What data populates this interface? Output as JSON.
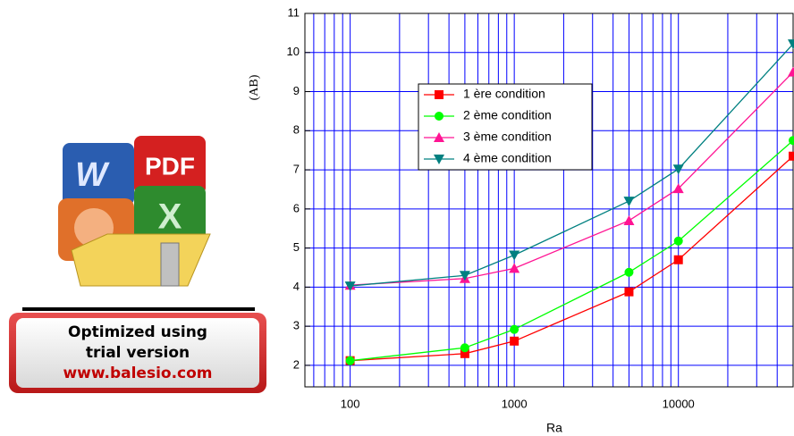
{
  "chart_data": {
    "type": "line",
    "x_label": "Ra",
    "y_label": "(AB)",
    "log_x": true,
    "grid": true,
    "grid_color": "#0000ff",
    "x": [
      100,
      500,
      1000,
      5000,
      10000,
      50000
    ],
    "series": [
      {
        "name": "1 ère condition",
        "color": "#ff0000",
        "marker": "square",
        "values": [
          2.12,
          2.3,
          2.62,
          3.88,
          4.7,
          7.35
        ]
      },
      {
        "name": "2 ème condition",
        "color": "#00ff00",
        "marker": "circle",
        "values": [
          2.12,
          2.45,
          2.92,
          4.38,
          5.18,
          7.75
        ]
      },
      {
        "name": "3 ème condition",
        "color": "#ff1493",
        "marker": "triangle-up",
        "values": [
          4.05,
          4.22,
          4.48,
          5.7,
          6.52,
          9.5
        ]
      },
      {
        "name": "4 ème condition",
        "color": "#008080",
        "marker": "triangle-down",
        "values": [
          4.03,
          4.3,
          4.82,
          6.2,
          7.02,
          10.22
        ]
      }
    ],
    "xlim": [
      53,
      50000
    ],
    "ylim": [
      1.45,
      11
    ],
    "xticks": [
      100,
      1000,
      10000
    ],
    "x_minor_grid": [
      60,
      70,
      80,
      90,
      200,
      300,
      400,
      500,
      600,
      700,
      800,
      900,
      2000,
      3000,
      4000,
      5000,
      6000,
      7000,
      8000,
      9000,
      20000,
      30000,
      40000,
      50000
    ],
    "yticks": [
      2,
      3,
      4,
      5,
      6,
      7,
      8,
      9,
      10,
      11
    ],
    "legend": "upper-left"
  },
  "watermark": {
    "lines": [
      "Optimized using",
      "trial version",
      "www.balesio.com"
    ]
  }
}
